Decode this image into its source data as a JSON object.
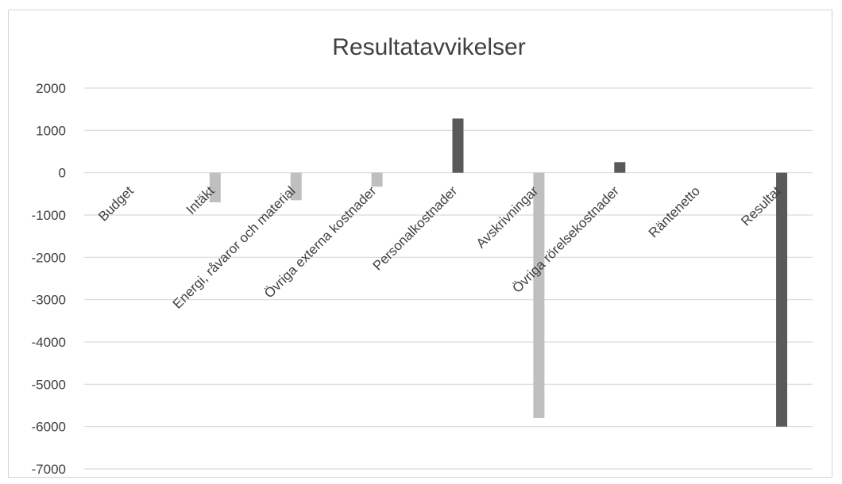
{
  "chart_data": {
    "type": "bar",
    "title": "Resultatavvikelser",
    "xlabel": "",
    "ylabel": "",
    "ylim": [
      -7000,
      2000
    ],
    "yticks": [
      2000,
      1000,
      0,
      -1000,
      -2000,
      -3000,
      -4000,
      -5000,
      -6000,
      -7000
    ],
    "grid": true,
    "legend": "none",
    "categories": [
      "Budget",
      "Intäkt",
      "Energi, råvaror och material",
      "Övriga externa kostnader",
      "Personalkostnader",
      "Avskrivningar",
      "Övriga rörelsekostnader",
      "Räntenetto",
      "Resultat"
    ],
    "values": [
      0,
      -700,
      -650,
      -330,
      1280,
      -5800,
      250,
      0,
      -6000
    ],
    "bar_colors": [
      "#bfbfbf",
      "#bfbfbf",
      "#bfbfbf",
      "#bfbfbf",
      "#595959",
      "#bfbfbf",
      "#595959",
      "#bfbfbf",
      "#595959"
    ]
  }
}
